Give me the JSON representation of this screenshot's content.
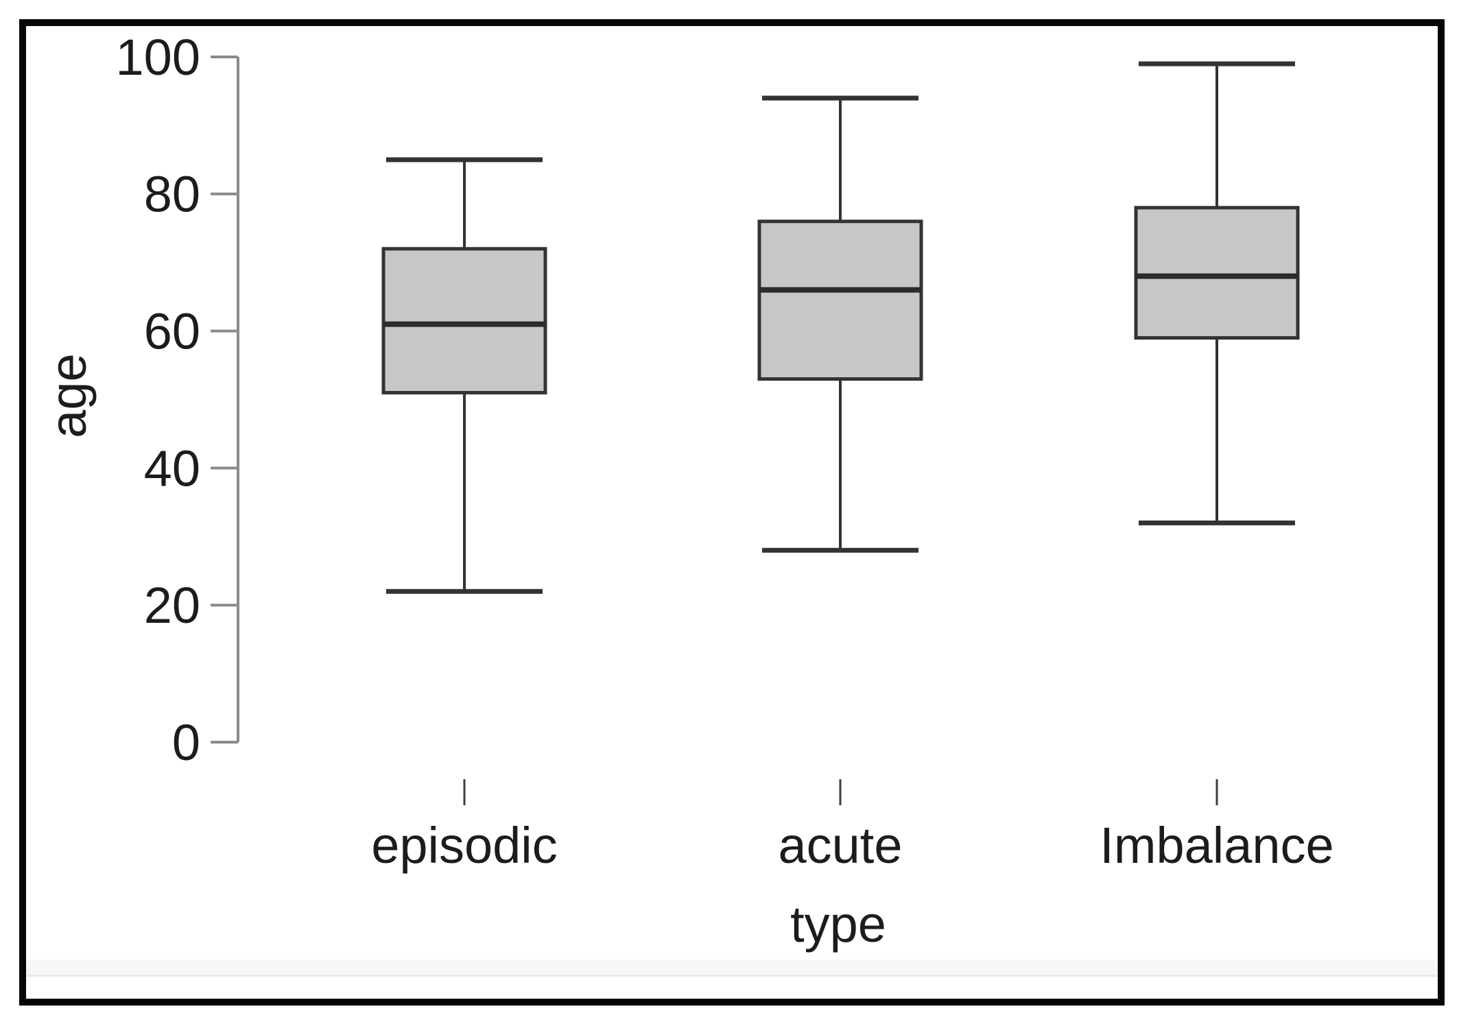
{
  "labels": {
    "y_axis_title": "age",
    "x_axis_title": "type"
  },
  "chart_data": {
    "type": "boxplot",
    "title": "",
    "xlabel": "type",
    "ylabel": "age",
    "categories": [
      "episodic",
      "acute",
      "Imbalance"
    ],
    "boxes": [
      {
        "category": "episodic",
        "min": 22,
        "q1": 51,
        "median": 61,
        "q3": 72,
        "max": 85
      },
      {
        "category": "acute",
        "min": 28,
        "q1": 53,
        "median": 66,
        "q3": 76,
        "max": 94
      },
      {
        "category": "Imbalance",
        "min": 32,
        "q1": 59,
        "median": 68,
        "q3": 78,
        "max": 99
      }
    ],
    "ylim": [
      0,
      100
    ],
    "yticks": [
      0,
      20,
      40,
      60,
      80,
      100
    ],
    "grid": false,
    "legend": null,
    "colors": {
      "box_fill": "#c7c7c7",
      "box_stroke": "#333333",
      "median_stroke": "#2b2b2b",
      "axis_line": "#8a8a8a",
      "x_tick": "#3d3d3d",
      "text": "#1c1c1c",
      "frame": "#060606",
      "background": "#ffffff",
      "footer_band": "#f7f7f7",
      "footer_band_line": "#e9e9e9"
    }
  }
}
